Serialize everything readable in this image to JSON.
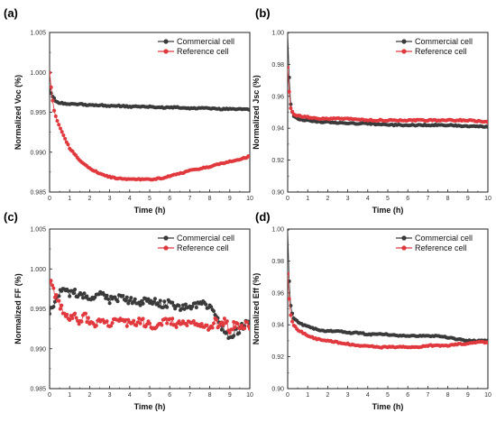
{
  "figure": {
    "panels": [
      "(a)",
      "(b)",
      "(c)",
      "(d)"
    ],
    "series_names": [
      "Commercial cell",
      "Reference cell"
    ],
    "colors": {
      "commercial": "#3a3a3a",
      "reference": "#e0393e"
    }
  },
  "chart_data": [
    {
      "type": "line",
      "panel": "(a)",
      "xlabel": "Time (h)",
      "ylabel": "Normalized Voc (%)",
      "xlim": [
        0,
        10
      ],
      "ylim": [
        0.985,
        1.005
      ],
      "xticks": [
        "0",
        "1",
        "2",
        "3",
        "4",
        "5",
        "6",
        "7",
        "8",
        "9",
        "10"
      ],
      "yticks": [
        "0.985",
        "0.990",
        "0.995",
        "1.000",
        "1.005"
      ],
      "legend": "top-right",
      "x": [
        0,
        0.1,
        0.2,
        0.35,
        0.5,
        0.75,
        1,
        1.5,
        2,
        2.5,
        3,
        3.5,
        4,
        4.5,
        5,
        5.5,
        6,
        6.5,
        7,
        7.5,
        8,
        8.5,
        9,
        9.5,
        10
      ],
      "series": [
        {
          "name": "Commercial cell",
          "values": [
            0.998,
            0.9972,
            0.9968,
            0.9963,
            0.9962,
            0.9961,
            0.996,
            0.996,
            0.9959,
            0.9959,
            0.9958,
            0.9958,
            0.9957,
            0.9957,
            0.9957,
            0.9956,
            0.9956,
            0.9956,
            0.9955,
            0.9955,
            0.9955,
            0.9954,
            0.9954,
            0.9954,
            0.9953
          ]
        },
        {
          "name": "Reference cell",
          "values": [
            1.0,
            0.9975,
            0.9955,
            0.9942,
            0.9932,
            0.9918,
            0.9905,
            0.989,
            0.988,
            0.9873,
            0.9869,
            0.9867,
            0.9866,
            0.9866,
            0.9866,
            0.9867,
            0.987,
            0.9873,
            0.9877,
            0.9879,
            0.9882,
            0.9885,
            0.9888,
            0.9891,
            0.9895
          ]
        }
      ]
    },
    {
      "type": "line",
      "panel": "(b)",
      "xlabel": "Time (h)",
      "ylabel": "Normalized Jsc (%)",
      "xlim": [
        0,
        10
      ],
      "ylim": [
        0.9,
        1.0
      ],
      "xticks": [
        "0",
        "1",
        "2",
        "3",
        "4",
        "5",
        "6",
        "7",
        "8",
        "9",
        "10"
      ],
      "yticks": [
        "0.90",
        "0.92",
        "0.94",
        "0.96",
        "0.98",
        "1.00"
      ],
      "legend": "top-right",
      "x": [
        0,
        0.05,
        0.1,
        0.15,
        0.2,
        0.3,
        0.4,
        0.5,
        0.75,
        1,
        1.5,
        2,
        3,
        4,
        5,
        6,
        7,
        8,
        9,
        10
      ],
      "series": [
        {
          "name": "Commercial cell",
          "values": [
            1.0,
            0.98,
            0.965,
            0.955,
            0.951,
            0.948,
            0.947,
            0.946,
            0.945,
            0.945,
            0.944,
            0.944,
            0.943,
            0.943,
            0.942,
            0.942,
            0.942,
            0.942,
            0.941,
            0.941
          ]
        },
        {
          "name": "Reference cell",
          "values": [
            0.978,
            0.968,
            0.958,
            0.953,
            0.951,
            0.949,
            0.948,
            0.948,
            0.947,
            0.947,
            0.946,
            0.946,
            0.946,
            0.945,
            0.945,
            0.945,
            0.945,
            0.945,
            0.945,
            0.944
          ]
        }
      ]
    },
    {
      "type": "line",
      "panel": "(c)",
      "xlabel": "Time (h)",
      "ylabel": "Normalized FF (%)",
      "xlim": [
        0,
        10
      ],
      "ylim": [
        0.985,
        1.005
      ],
      "xticks": [
        "0",
        "1",
        "2",
        "3",
        "4",
        "5",
        "6",
        "7",
        "8",
        "9",
        "10"
      ],
      "yticks": [
        "0.985",
        "0.990",
        "0.995",
        "1.000",
        "1.005"
      ],
      "legend": "top-right",
      "x": [
        0,
        0.25,
        0.5,
        0.75,
        1,
        1.25,
        1.5,
        1.75,
        2,
        2.5,
        3,
        3.5,
        4,
        4.5,
        5,
        5.5,
        6,
        6.5,
        7,
        7.5,
        8,
        8.25,
        8.5,
        8.75,
        9,
        9.25,
        9.5,
        9.75,
        10
      ],
      "series": [
        {
          "name": "Commercial cell",
          "values": [
            0.9945,
            0.996,
            0.9972,
            0.9975,
            0.9968,
            0.9972,
            0.9965,
            0.997,
            0.9966,
            0.9968,
            0.9962,
            0.9965,
            0.996,
            0.9958,
            0.9962,
            0.9956,
            0.9957,
            0.9952,
            0.9955,
            0.9955,
            0.9955,
            0.994,
            0.993,
            0.9922,
            0.9915,
            0.992,
            0.9925,
            0.993,
            0.9935
          ]
        },
        {
          "name": "Reference cell",
          "values": [
            0.9985,
            0.997,
            0.9955,
            0.9945,
            0.9935,
            0.9945,
            0.993,
            0.9945,
            0.993,
            0.9935,
            0.993,
            0.994,
            0.993,
            0.9935,
            0.993,
            0.993,
            0.9935,
            0.993,
            0.9935,
            0.993,
            0.9925,
            0.9935,
            0.9928,
            0.9935,
            0.9925,
            0.993,
            0.9925,
            0.993,
            0.9928
          ]
        }
      ]
    },
    {
      "type": "line",
      "panel": "(d)",
      "xlabel": "Time (h)",
      "ylabel": "Normalized Eff (%)",
      "xlim": [
        0,
        10
      ],
      "ylim": [
        0.9,
        1.0
      ],
      "xticks": [
        "0",
        "1",
        "2",
        "3",
        "4",
        "5",
        "6",
        "7",
        "8",
        "9",
        "10"
      ],
      "yticks": [
        "0.90",
        "0.92",
        "0.94",
        "0.96",
        "0.98",
        "1.00"
      ],
      "legend": "top-right",
      "x": [
        0,
        0.05,
        0.1,
        0.15,
        0.2,
        0.3,
        0.5,
        0.75,
        1,
        1.5,
        2,
        2.5,
        3,
        3.5,
        4,
        4.5,
        5,
        5.5,
        6,
        6.5,
        7,
        7.5,
        8,
        8.5,
        9,
        9.5,
        10
      ],
      "series": [
        {
          "name": "Commercial cell",
          "values": [
            1.0,
            0.975,
            0.96,
            0.952,
            0.948,
            0.944,
            0.942,
            0.94,
            0.939,
            0.937,
            0.936,
            0.936,
            0.935,
            0.935,
            0.934,
            0.934,
            0.934,
            0.933,
            0.933,
            0.933,
            0.933,
            0.933,
            0.932,
            0.931,
            0.93,
            0.93,
            0.93
          ]
        },
        {
          "name": "Reference cell",
          "values": [
            0.972,
            0.962,
            0.952,
            0.946,
            0.943,
            0.94,
            0.937,
            0.935,
            0.933,
            0.931,
            0.93,
            0.929,
            0.928,
            0.927,
            0.927,
            0.926,
            0.926,
            0.926,
            0.926,
            0.926,
            0.927,
            0.927,
            0.927,
            0.928,
            0.928,
            0.929,
            0.929
          ]
        }
      ]
    }
  ]
}
